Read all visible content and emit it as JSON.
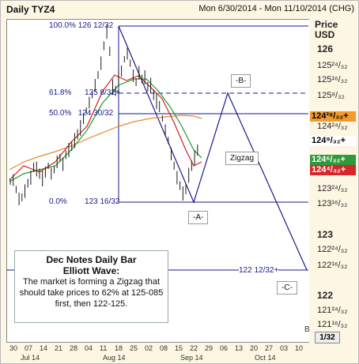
{
  "header": {
    "title": "Daily TYZ4",
    "date_range": "Mon 6/30/2014 - Mon 11/10/2014 (CHG)"
  },
  "axis": {
    "price_label": "Price",
    "currency": "USD",
    "ticks": [
      "126",
      "125²⁴/₃₂",
      "125¹⁶/₃₂",
      "125⁸/₃₂",
      "124²⁴/₃₂",
      "124¹⁶/₃₂",
      "123²⁴/₃₂",
      "123¹⁶/₃₂",
      "123",
      "122²⁴/₃₂",
      "122¹⁶/₃₂",
      "122",
      "121²⁴/₃₂",
      "121¹⁶/₃₂"
    ],
    "tick_fraction": "1/32"
  },
  "price_boxes": [
    {
      "label": "124²⁸/₃₂+",
      "color": "#f39a2b",
      "text_color": "#000000"
    },
    {
      "label": "124⁹/₃₂+",
      "color": "#ffffff",
      "text_color": "#000000"
    },
    {
      "label": "124⁶/₃₂+",
      "color": "#2e9b3a",
      "text_color": "#ffffff"
    },
    {
      "label": "124⁴/₃₂+",
      "color": "#d7262b",
      "text_color": "#ffffff"
    }
  ],
  "fib_levels": [
    {
      "pct": "100.0%",
      "price": "126 12/32"
    },
    {
      "pct": "61.8%",
      "price": "125 8/32+"
    },
    {
      "pct": "50.0%",
      "price": "124 30/32"
    },
    {
      "pct": "0.0%",
      "price": "123 16/32"
    }
  ],
  "target_label": "122 12/32+",
  "wave_labels": {
    "b": "-B-",
    "a": "-A-",
    "c": "-C-",
    "zigzag": "Zigzag"
  },
  "note": {
    "title": "Dec Notes Daily Bar",
    "subtitle": "Elliott Wave:",
    "body": "The market is forming a Zigzag that should take prices to 62% at 125-085 first, then 122-125."
  },
  "x_axis": {
    "days": [
      "30",
      "07",
      "14",
      "21",
      "28",
      "04",
      "11",
      "18",
      "25",
      "02",
      "08",
      "15",
      "22",
      "29",
      "06",
      "13",
      "20",
      "27",
      "03",
      "10"
    ],
    "months": [
      "Jul 14",
      "Aug 14",
      "Sep 14",
      "Oct 14"
    ]
  },
  "corner": "1/32",
  "b_marker": "B",
  "colors": {
    "up_bar": "#1a1a1a",
    "ma_red": "#d42020",
    "ma_green": "#1f9a2f",
    "ma_orange": "#e58a2a",
    "wave_line": "#1a1a8a"
  }
}
